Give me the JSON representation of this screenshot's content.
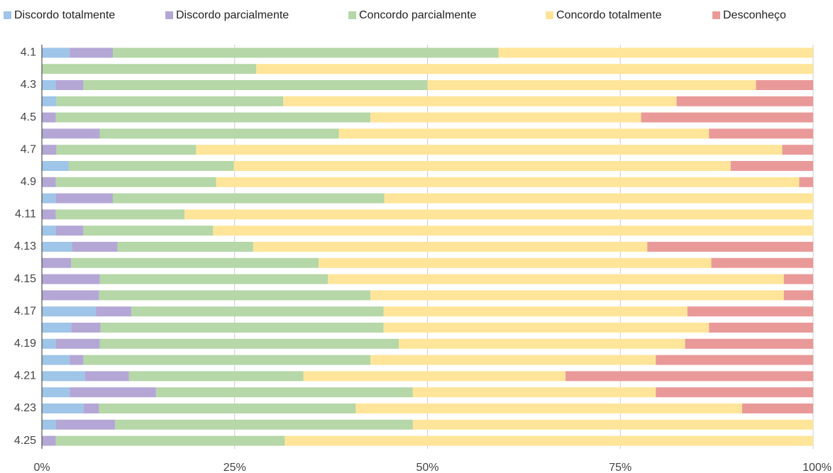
{
  "chart_data": {
    "type": "stacked_bar_horizontal",
    "categories": [
      "4.1",
      null,
      "4.3",
      null,
      "4.5",
      null,
      "4.7",
      null,
      "4.9",
      null,
      "4.11",
      null,
      "4.13",
      null,
      "4.15",
      null,
      "4.17",
      null,
      "4.19",
      null,
      "4.21",
      null,
      "4.23",
      null,
      "4.25"
    ],
    "series": [
      {
        "name": "Discordo totalmente",
        "color": "#9fc5e8",
        "values": [
          3.6,
          0,
          1.8,
          1.9,
          0,
          0,
          0,
          3.5,
          0,
          1.8,
          0,
          1.8,
          3.9,
          0,
          0,
          0,
          7.0,
          3.8,
          1.8,
          3.6,
          5.6,
          3.6,
          5.4,
          1.8,
          0
        ]
      },
      {
        "name": "Discordo parcialmente",
        "color": "#b4a7d6",
        "values": [
          5.6,
          0,
          3.6,
          0,
          1.8,
          7.5,
          1.9,
          0,
          1.8,
          7.4,
          1.8,
          3.6,
          5.9,
          3.8,
          7.5,
          7.4,
          4.6,
          3.8,
          5.7,
          1.8,
          5.7,
          11.2,
          2.0,
          7.7,
          1.8
        ]
      },
      {
        "name": "Concordo parcialmente",
        "color": "#b6d7a8",
        "values": [
          50.0,
          27.8,
          44.6,
          29.4,
          40.8,
          31.0,
          18.1,
          21.4,
          20.8,
          35.2,
          16.7,
          16.8,
          17.6,
          32.1,
          29.6,
          35.2,
          32.7,
          36.7,
          38.8,
          37.2,
          22.6,
          33.3,
          33.3,
          38.6,
          29.7
        ]
      },
      {
        "name": "Concordo totalmente",
        "color": "#ffe599",
        "values": [
          40.8,
          72.2,
          42.6,
          51.0,
          35.1,
          48.0,
          76.0,
          64.4,
          75.6,
          55.6,
          81.5,
          77.8,
          51.1,
          50.9,
          59.1,
          53.6,
          39.4,
          42.2,
          37.1,
          37.0,
          34.0,
          31.5,
          50.1,
          51.9,
          68.5
        ]
      },
      {
        "name": "Desconheço",
        "color": "#ea9999",
        "values": [
          0,
          0,
          7.4,
          17.7,
          22.3,
          13.5,
          4.0,
          10.7,
          1.8,
          0,
          0,
          0,
          21.5,
          13.2,
          3.8,
          3.8,
          16.3,
          13.5,
          16.6,
          20.4,
          32.1,
          20.4,
          9.2,
          0,
          0
        ]
      }
    ],
    "xlim": [
      0,
      100
    ],
    "xticks": [
      {
        "value": 0,
        "label": "0%"
      },
      {
        "value": 25,
        "label": "25%"
      },
      {
        "value": 50,
        "label": "50%"
      },
      {
        "value": 75,
        "label": "75%"
      },
      {
        "value": 100,
        "label": "100%"
      }
    ],
    "grid": true,
    "legend": "top"
  }
}
